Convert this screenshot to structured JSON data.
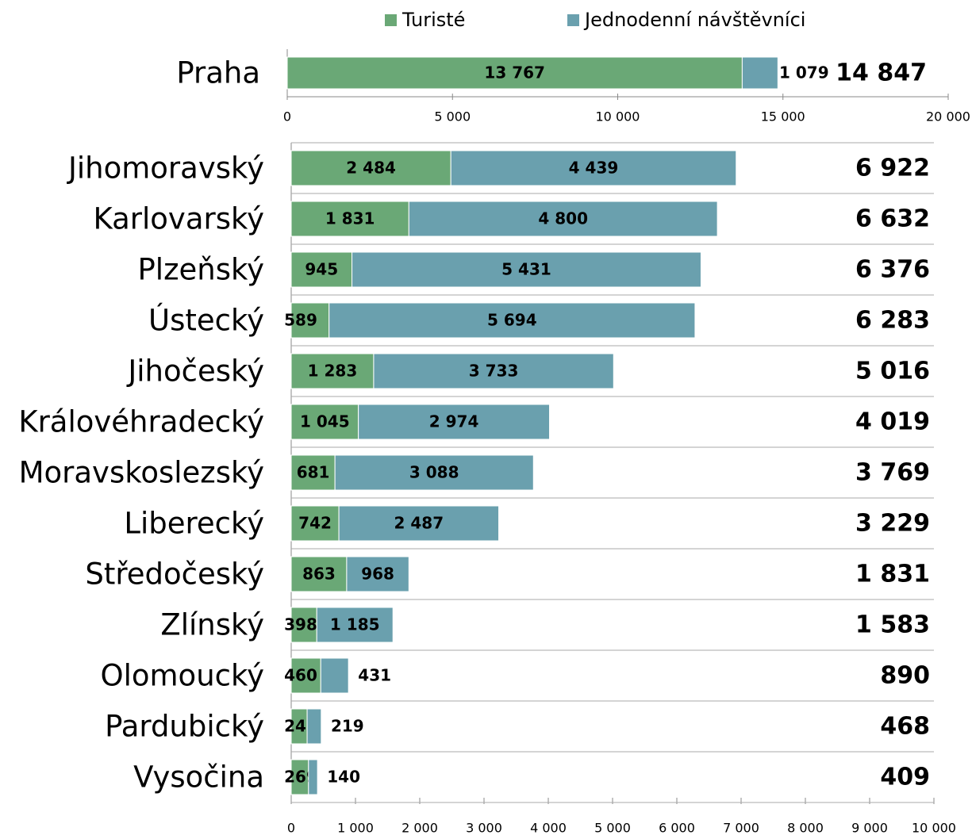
{
  "chart_data": [
    {
      "type": "stacked-barh",
      "categories": [
        "Praha"
      ],
      "series": [
        {
          "name": "Turisté",
          "color": "#6aa876",
          "values": [
            13767
          ],
          "value_labels": [
            "13 767"
          ]
        },
        {
          "name": "Jednodenní návštěvníci",
          "color": "#6aa0ae",
          "values": [
            1079
          ],
          "value_labels": [
            "1 079"
          ]
        }
      ],
      "totals": [
        14847
      ],
      "total_labels": [
        "14 847"
      ],
      "xlim": [
        0,
        20000
      ],
      "xticks": [
        0,
        {
          "value": 5000,
          "label": "5 000"
        },
        {
          "value": 10000,
          "label": "10 000"
        },
        {
          "value": 15000,
          "label": "15 000"
        },
        {
          "value": 20000,
          "label": "20 000"
        }
      ],
      "legend": "top"
    },
    {
      "type": "stacked-barh",
      "categories": [
        "Jihomoravský",
        "Karlovarský",
        "Plzeňský",
        "Ústecký",
        "Jihočeský",
        "Královéhradecký",
        "Moravskoslezský",
        "Liberecký",
        "Středočeský",
        "Zlínský",
        "Olomoucký",
        "Pardubický",
        "Vysočina"
      ],
      "series": [
        {
          "name": "Turisté",
          "color": "#6aa876",
          "values": [
            2484,
            1831,
            945,
            589,
            1283,
            1045,
            681,
            742,
            863,
            398,
            460,
            248,
            269
          ],
          "value_labels": [
            "2 484",
            "1 831",
            "945",
            "589",
            "1 283",
            "1 045",
            "681",
            "742",
            "863",
            "398",
            "460",
            "248",
            "269"
          ]
        },
        {
          "name": "Jednodenní návštěvníci",
          "color": "#6aa0ae",
          "values": [
            4439,
            4800,
            5431,
            5694,
            3733,
            2974,
            3088,
            2487,
            968,
            1185,
            431,
            219,
            140
          ],
          "value_labels": [
            "4 439",
            "4 800",
            "5 431",
            "5 694",
            "3 733",
            "2 974",
            "3 088",
            "2 487",
            "968",
            "1 185",
            "431",
            "219",
            "140"
          ]
        }
      ],
      "totals": [
        6922,
        6632,
        6376,
        6283,
        5016,
        4019,
        3769,
        3229,
        1831,
        1583,
        890,
        468,
        409
      ],
      "total_labels": [
        "6 922",
        "6 632",
        "6 376",
        "6 283",
        "5 016",
        "4 019",
        "3 769",
        "3 229",
        "1 831",
        "1 583",
        "890",
        "468",
        "409"
      ],
      "xlim": [
        0,
        10000
      ],
      "xticks": [
        0,
        {
          "value": 1000,
          "label": "1 000"
        },
        {
          "value": 2000,
          "label": "2 000"
        },
        {
          "value": 3000,
          "label": "3 000"
        },
        {
          "value": 4000,
          "label": "4 000"
        },
        {
          "value": 5000,
          "label": "5 000"
        },
        {
          "value": 6000,
          "label": "6 000"
        },
        {
          "value": 7000,
          "label": "7 000"
        },
        {
          "value": 8000,
          "label": "8 000"
        },
        {
          "value": 9000,
          "label": "9 000"
        },
        {
          "value": 10000,
          "label": "10 000"
        }
      ]
    }
  ]
}
